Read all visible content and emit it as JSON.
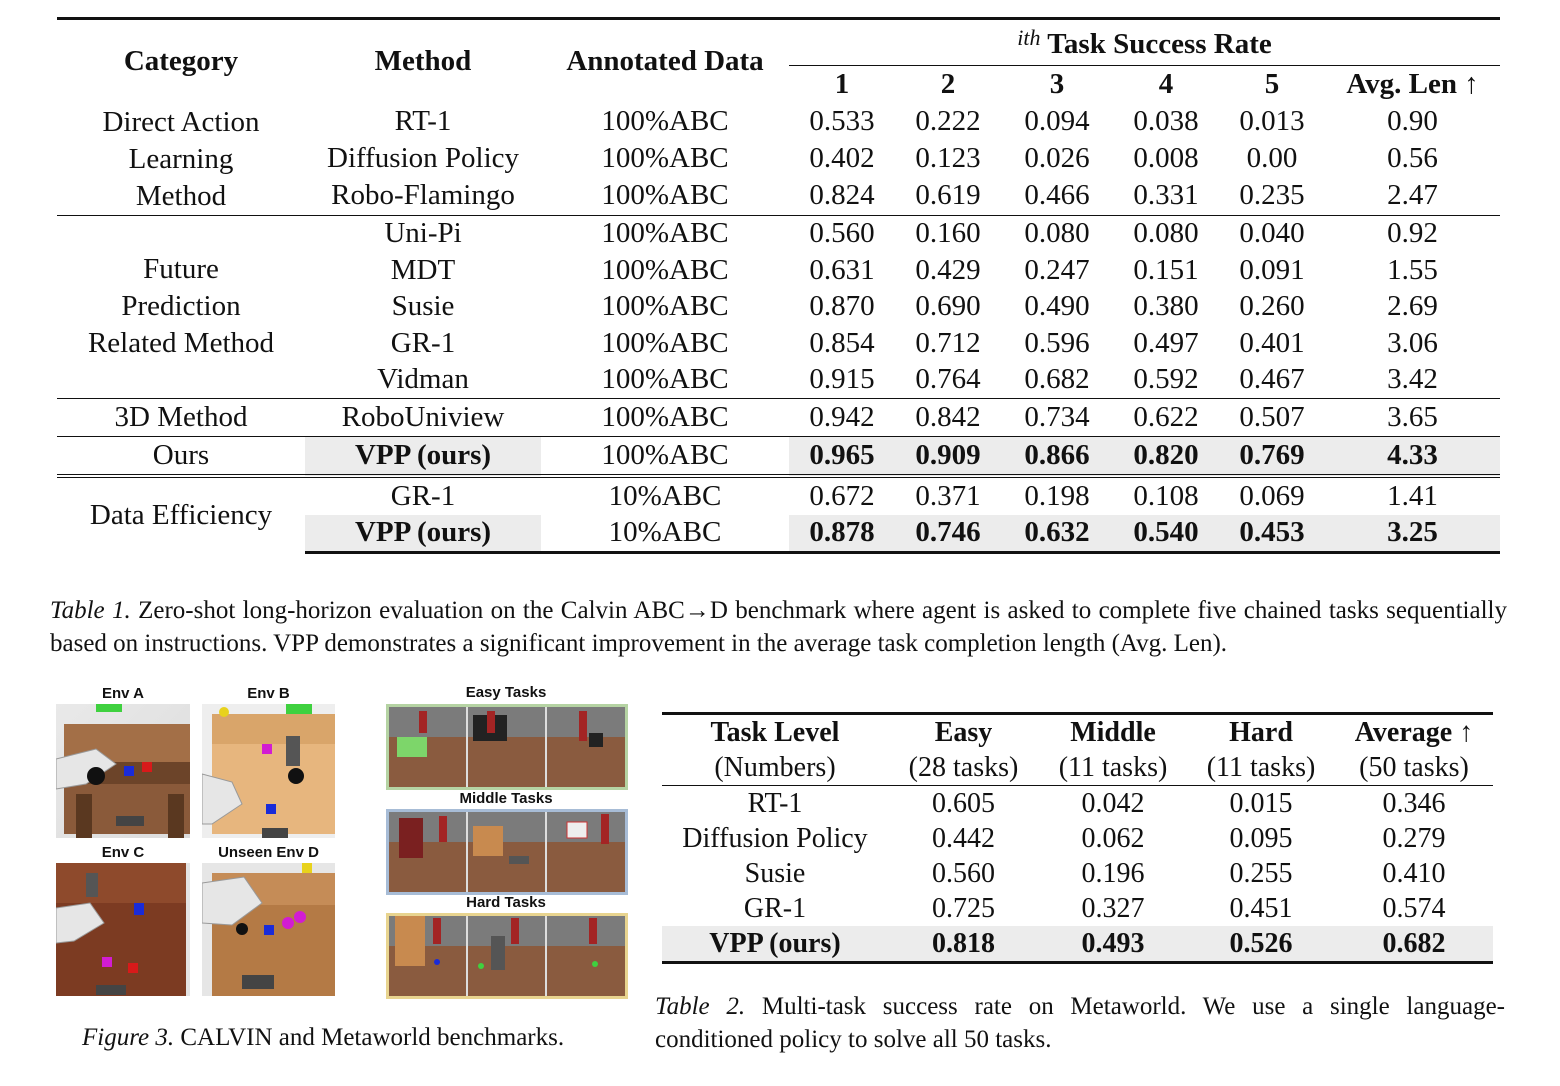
{
  "table1": {
    "headers": {
      "category": "Category",
      "method": "Method",
      "annotated": "Annotated Data",
      "success_sup": "ith",
      "success_label": "Task Success Rate",
      "cols": [
        "1",
        "2",
        "3",
        "4",
        "5",
        "Avg. Len ↑"
      ]
    },
    "groups": [
      {
        "category": "Direct Action Learning Method",
        "rows": [
          {
            "method": "RT-1",
            "data": "100%ABC",
            "values": [
              "0.533",
              "0.222",
              "0.094",
              "0.038",
              "0.013",
              "0.90"
            ]
          },
          {
            "method": "Diffusion Policy",
            "data": "100%ABC",
            "values": [
              "0.402",
              "0.123",
              "0.026",
              "0.008",
              "0.00",
              "0.56"
            ]
          },
          {
            "method": "Robo-Flamingo",
            "data": "100%ABC",
            "values": [
              "0.824",
              "0.619",
              "0.466",
              "0.331",
              "0.235",
              "2.47"
            ]
          }
        ]
      },
      {
        "category": "Future Prediction Related Method",
        "rows": [
          {
            "method": "Uni-Pi",
            "data": "100%ABC",
            "values": [
              "0.560",
              "0.160",
              "0.080",
              "0.080",
              "0.040",
              "0.92"
            ]
          },
          {
            "method": "MDT",
            "data": "100%ABC",
            "values": [
              "0.631",
              "0.429",
              "0.247",
              "0.151",
              "0.091",
              "1.55"
            ]
          },
          {
            "method": "Susie",
            "data": "100%ABC",
            "values": [
              "0.870",
              "0.690",
              "0.490",
              "0.380",
              "0.260",
              "2.69"
            ]
          },
          {
            "method": "GR-1",
            "data": "100%ABC",
            "values": [
              "0.854",
              "0.712",
              "0.596",
              "0.497",
              "0.401",
              "3.06"
            ]
          },
          {
            "method": "Vidman",
            "data": "100%ABC",
            "values": [
              "0.915",
              "0.764",
              "0.682",
              "0.592",
              "0.467",
              "3.42"
            ]
          }
        ]
      },
      {
        "category": "3D Method",
        "rows": [
          {
            "method": "RoboUniview",
            "data": "100%ABC",
            "values": [
              "0.942",
              "0.842",
              "0.734",
              "0.622",
              "0.507",
              "3.65"
            ]
          }
        ]
      },
      {
        "category": "Ours",
        "rows": [
          {
            "method": "VPP (ours)",
            "data": "100%ABC",
            "values": [
              "0.965",
              "0.909",
              "0.866",
              "0.820",
              "0.769",
              "4.33"
            ],
            "bold": true
          }
        ]
      },
      {
        "category": "Data Efficiency",
        "rows": [
          {
            "method": "GR-1",
            "data": "10%ABC",
            "values": [
              "0.672",
              "0.371",
              "0.198",
              "0.108",
              "0.069",
              "1.41"
            ]
          },
          {
            "method": "VPP (ours)",
            "data": "10%ABC",
            "values": [
              "0.878",
              "0.746",
              "0.632",
              "0.540",
              "0.453",
              "3.25"
            ],
            "bold": true
          }
        ]
      }
    ]
  },
  "caption1": {
    "label": "Table 1.",
    "text": " Zero-shot long-horizon evaluation on the Calvin ABC→D benchmark where agent is asked to complete five chained tasks sequentially based on instructions. VPP demonstrates a significant improvement in the average task completion length (Avg. Len)."
  },
  "figure3": {
    "env_labels": [
      "Env A",
      "Env B",
      "Env C",
      "Unseen Env D"
    ],
    "task_labels": [
      "Easy Tasks",
      "Middle Tasks",
      "Hard Tasks"
    ],
    "colors": {
      "easy_border": "#b5d3a3",
      "middle_border": "#a7bcd6",
      "hard_border": "#e8d48f"
    },
    "caption_label": "Figure 3.",
    "caption_text": " CALVIN and Metaworld benchmarks."
  },
  "table2": {
    "headers": [
      {
        "title": "Task Level",
        "sub": "(Numbers)"
      },
      {
        "title": "Easy",
        "sub": "(28 tasks)"
      },
      {
        "title": "Middle",
        "sub": "(11 tasks)"
      },
      {
        "title": "Hard",
        "sub": "(11 tasks)"
      },
      {
        "title": "Average ↑",
        "sub": "(50 tasks)"
      }
    ],
    "rows": [
      {
        "name": "RT-1",
        "values": [
          "0.605",
          "0.042",
          "0.015",
          "0.346"
        ]
      },
      {
        "name": "Diffusion Policy",
        "values": [
          "0.442",
          "0.062",
          "0.095",
          "0.279"
        ]
      },
      {
        "name": "Susie",
        "values": [
          "0.560",
          "0.196",
          "0.255",
          "0.410"
        ]
      },
      {
        "name": "GR-1",
        "values": [
          "0.725",
          "0.327",
          "0.451",
          "0.574"
        ]
      },
      {
        "name": "VPP (ours)",
        "values": [
          "0.818",
          "0.493",
          "0.526",
          "0.682"
        ],
        "bold": true
      }
    ]
  },
  "caption2": {
    "label": "Table 2.",
    "text": " Multi-task success rate on Metaworld.  We use a single language-conditioned policy to solve all 50 tasks."
  }
}
